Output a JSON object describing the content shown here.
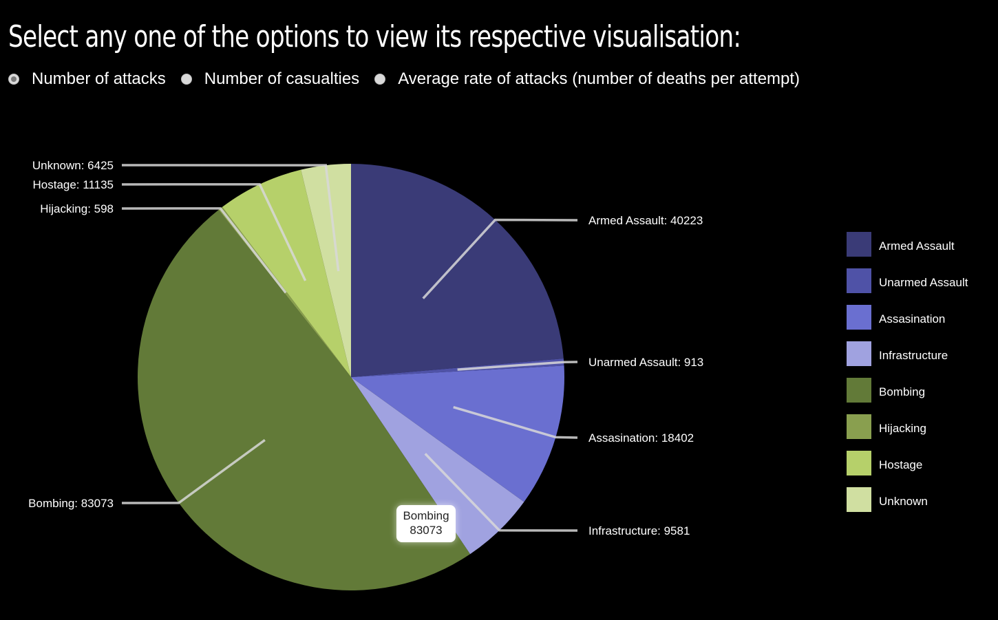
{
  "heading": "Select any one of the options to view its respective visualisation:",
  "options": [
    {
      "label": "Number of attacks",
      "checked": true
    },
    {
      "label": "Number of casualties",
      "checked": false
    },
    {
      "label": "Average rate of attacks (number of deaths per attempt)",
      "checked": false
    }
  ],
  "chart_data": {
    "type": "pie",
    "title": "",
    "categories": [
      "Armed Assault",
      "Unarmed Assault",
      "Assasination",
      "Infrastructure",
      "Bombing",
      "Hijacking",
      "Hostage",
      "Unknown"
    ],
    "values": [
      40223,
      913,
      18402,
      9581,
      83073,
      598,
      11135,
      6425
    ],
    "colors": [
      "#3a3b77",
      "#4f52a7",
      "#6a6fd0",
      "#a0a2e0",
      "#627a38",
      "#899f4f",
      "#b6d06a",
      "#d0dfa1"
    ],
    "data_labels": [
      "Armed Assault: 40223",
      "Unarmed Assault: 913",
      "Assasination: 18402",
      "Infrastructure: 9581",
      "Bombing: 83073",
      "Hijacking: 598",
      "Hostage: 11135",
      "Unknown: 6425"
    ],
    "legend": "right",
    "start": "top",
    "direction": "clockwise"
  },
  "tooltip": {
    "category": "Bombing",
    "value": "83073"
  }
}
